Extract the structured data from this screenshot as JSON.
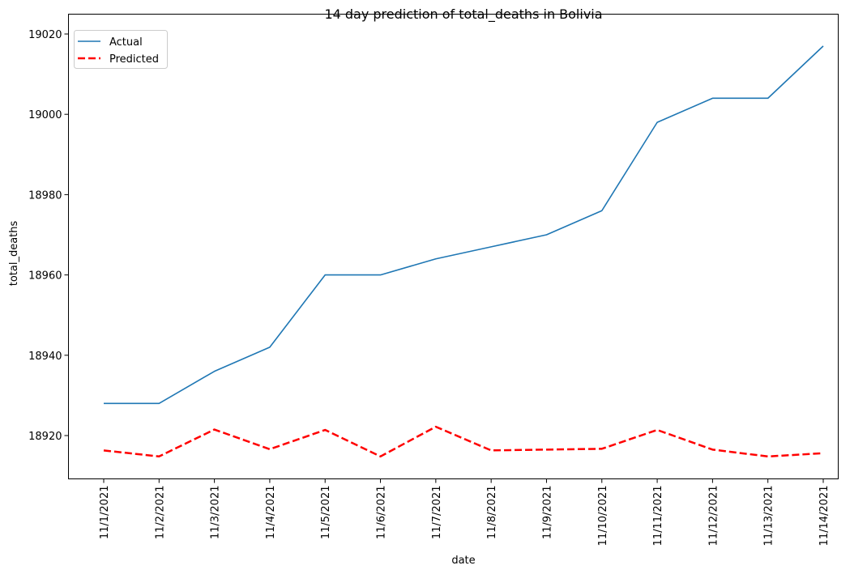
{
  "chart_data": {
    "type": "line",
    "title": "14 day prediction of total_deaths in Bolivia",
    "xlabel": "date",
    "ylabel": "total_deaths",
    "categories": [
      "11/1/2021",
      "11/2/2021",
      "11/3/2021",
      "11/4/2021",
      "11/5/2021",
      "11/6/2021",
      "11/7/2021",
      "11/8/2021",
      "11/9/2021",
      "11/10/2021",
      "11/11/2021",
      "11/12/2021",
      "11/13/2021",
      "11/14/2021"
    ],
    "ylim": [
      18910,
      19020
    ],
    "yticks": [
      18920,
      18940,
      18960,
      18980,
      19000,
      19020
    ],
    "series": [
      {
        "name": "Actual",
        "color": "#1f77b4",
        "style": "solid",
        "values": [
          18928,
          18928,
          18936,
          18942,
          18960,
          18960,
          18964,
          18967,
          18970,
          18976,
          18998,
          19004,
          19004,
          19017
        ]
      },
      {
        "name": "Predicted",
        "color": "#ff0000",
        "style": "dashed",
        "values": [
          18916.3,
          18914.8,
          18921.5,
          18916.6,
          18921.4,
          18914.8,
          18922.2,
          18916.3,
          18916.5,
          18916.7,
          18921.4,
          18916.5,
          18914.8,
          18915.6
        ]
      }
    ],
    "legend": "top-left",
    "grid": false
  }
}
